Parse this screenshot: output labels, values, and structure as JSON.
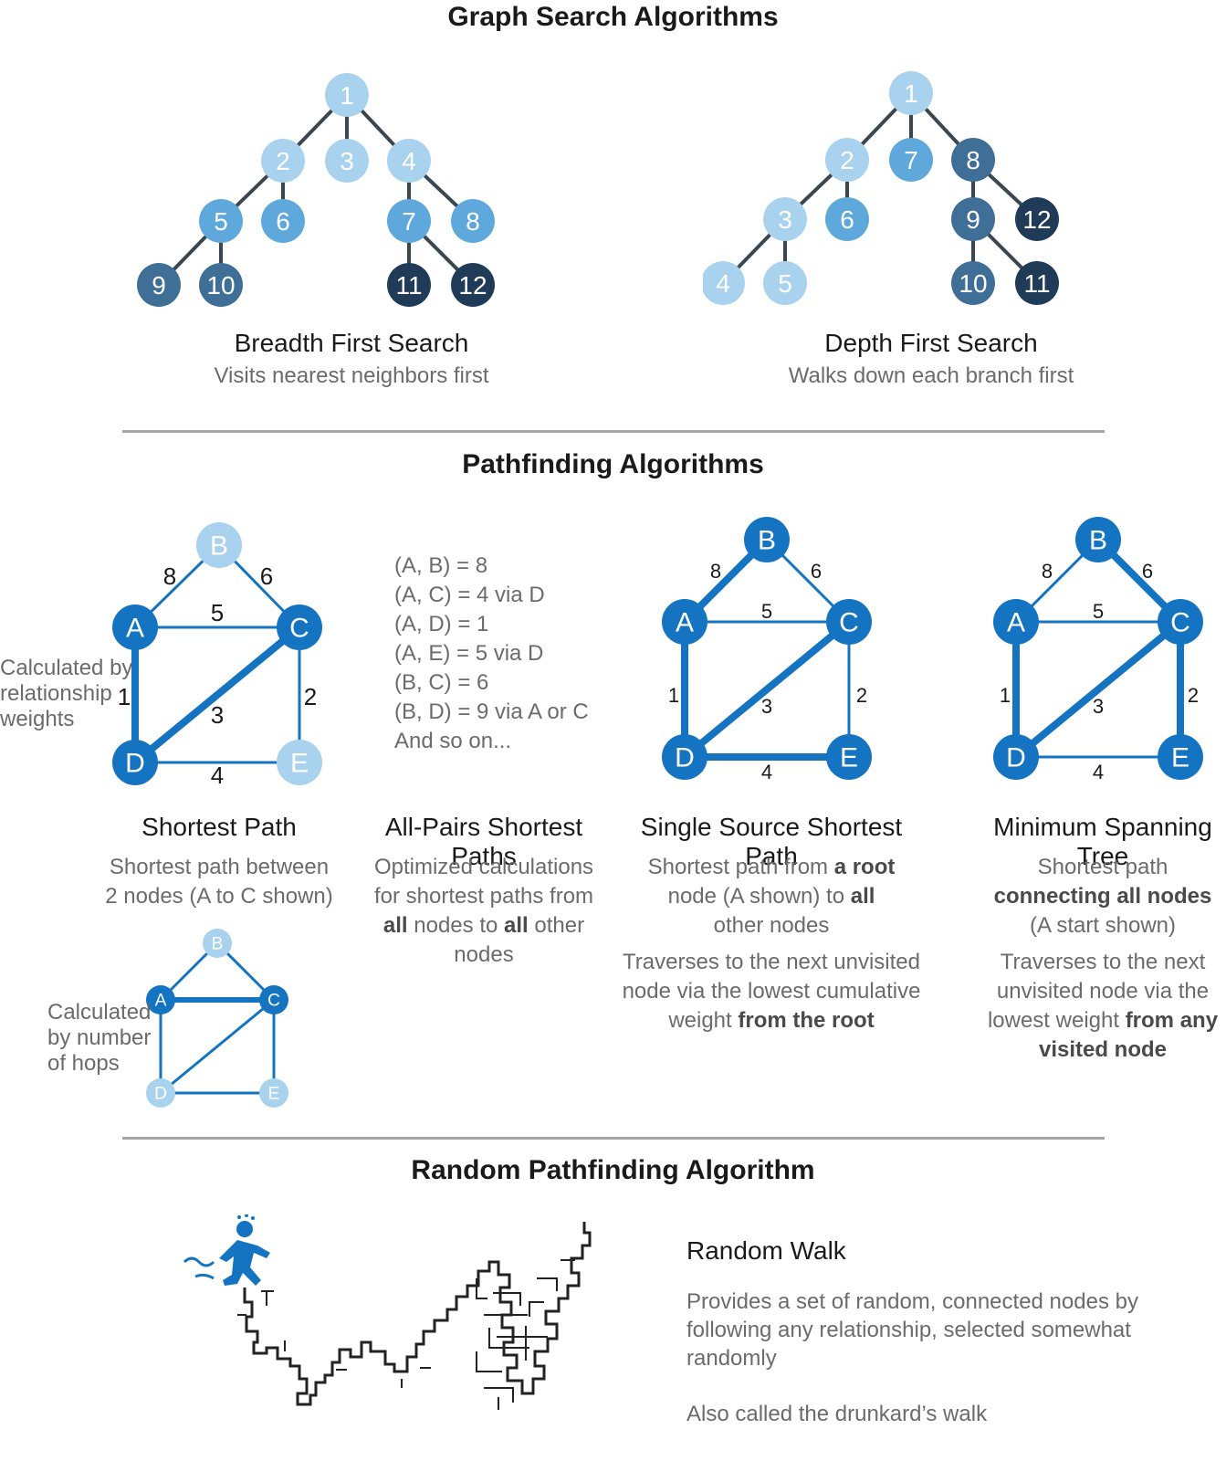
{
  "graph_search": {
    "title": "Graph Search Algorithms",
    "bfs": {
      "title": "Breadth First Search",
      "subtitle": "Visits nearest neighbors first",
      "nodes": [
        {
          "id": "1",
          "shade": "light"
        },
        {
          "id": "2",
          "shade": "light"
        },
        {
          "id": "3",
          "shade": "light"
        },
        {
          "id": "4",
          "shade": "light"
        },
        {
          "id": "5",
          "shade": "mid"
        },
        {
          "id": "6",
          "shade": "mid"
        },
        {
          "id": "7",
          "shade": "mid"
        },
        {
          "id": "8",
          "shade": "mid"
        },
        {
          "id": "9",
          "shade": "dark"
        },
        {
          "id": "10",
          "shade": "dark"
        },
        {
          "id": "11",
          "shade": "darkest"
        },
        {
          "id": "12",
          "shade": "darkest"
        }
      ],
      "edges": [
        [
          "1",
          "2"
        ],
        [
          "1",
          "3"
        ],
        [
          "1",
          "4"
        ],
        [
          "2",
          "5"
        ],
        [
          "2",
          "6"
        ],
        [
          "4",
          "7"
        ],
        [
          "4",
          "8"
        ],
        [
          "5",
          "9"
        ],
        [
          "5",
          "10"
        ],
        [
          "7",
          "11"
        ],
        [
          "7",
          "12"
        ]
      ]
    },
    "dfs": {
      "title": "Depth First Search",
      "subtitle": "Walks down each branch first",
      "nodes": [
        {
          "id": "1",
          "shade": "light"
        },
        {
          "id": "2",
          "shade": "light"
        },
        {
          "id": "3",
          "shade": "light"
        },
        {
          "id": "4",
          "shade": "light"
        },
        {
          "id": "5",
          "shade": "light"
        },
        {
          "id": "6",
          "shade": "mid"
        },
        {
          "id": "7",
          "shade": "mid"
        },
        {
          "id": "8",
          "shade": "dark"
        },
        {
          "id": "9",
          "shade": "dark"
        },
        {
          "id": "10",
          "shade": "dark"
        },
        {
          "id": "11",
          "shade": "darkest"
        },
        {
          "id": "12",
          "shade": "darkest"
        }
      ],
      "edges": [
        [
          "1",
          "2"
        ],
        [
          "1",
          "7"
        ],
        [
          "1",
          "8"
        ],
        [
          "2",
          "3"
        ],
        [
          "2",
          "6"
        ],
        [
          "3",
          "4"
        ],
        [
          "3",
          "5"
        ],
        [
          "8",
          "9"
        ],
        [
          "8",
          "12"
        ],
        [
          "9",
          "10"
        ],
        [
          "9",
          "11"
        ]
      ]
    }
  },
  "pathfinding": {
    "title": "Pathfinding Algorithms",
    "edge_weights": [
      {
        "from": "A",
        "to": "B",
        "w": "8"
      },
      {
        "from": "B",
        "to": "C",
        "w": "6"
      },
      {
        "from": "A",
        "to": "C",
        "w": "5"
      },
      {
        "from": "A",
        "to": "D",
        "w": "1"
      },
      {
        "from": "C",
        "to": "D",
        "w": "3"
      },
      {
        "from": "C",
        "to": "E",
        "w": "2"
      },
      {
        "from": "D",
        "to": "E",
        "w": "4"
      }
    ],
    "shortest_path": {
      "title": "Shortest Path",
      "subtitle_lines": [
        "Shortest path between",
        "2 nodes (A to C shown)"
      ],
      "note_weights": [
        "Calculated by",
        "relationship",
        "weights"
      ],
      "note_hops": [
        "Calculated",
        "by number",
        "of hops"
      ],
      "highlight_weighted": [
        [
          "A",
          "D"
        ],
        [
          "D",
          "C"
        ]
      ],
      "highlight_hops": [
        [
          "A",
          "C"
        ]
      ]
    },
    "all_pairs": {
      "title": "All-Pairs Shortest Paths",
      "pairs": [
        "(A, B) = 8",
        "(A, C) = 4 via D",
        "(A, D) = 1",
        "(A, E) = 5 via D",
        "(B, C) = 6",
        "(B, D) = 9 via A or C",
        "And so on..."
      ],
      "line1": "Optimized calculations",
      "line2": "for shortest paths from",
      "line3_bold1": "all",
      "line3_mid": " nodes to ",
      "line3_bold2": "all",
      "line3_end": " other nodes"
    },
    "sssp": {
      "title": "Single Source Shortest Path",
      "p1_a": "Shortest path from ",
      "p1_b": "a root",
      "p1_c": "node (A shown) to ",
      "p1_d": "all",
      "p1_e": "other nodes",
      "p2_l1": "Traverses to the next unvisited",
      "p2_l2": "node via the  lowest cumulative",
      "p2_l3a": "weight ",
      "p2_l3b": "from the root",
      "highlight": [
        [
          "A",
          "B"
        ],
        [
          "A",
          "D"
        ],
        [
          "D",
          "C"
        ],
        [
          "D",
          "E"
        ]
      ]
    },
    "mst": {
      "title": "Minimum Spanning Tree",
      "p1_l1": "Shortest path",
      "p1_l2": "connecting all nodes",
      "p1_l3": "(A start shown)",
      "p2_l1": "Traverses to the next",
      "p2_l2": "unvisited node via the",
      "p2_l3a": "lowest weight ",
      "p2_l3b": "from any",
      "p2_l4": "visited node",
      "highlight": [
        [
          "B",
          "C"
        ],
        [
          "A",
          "D"
        ],
        [
          "D",
          "C"
        ],
        [
          "C",
          "E"
        ]
      ]
    }
  },
  "random": {
    "title": "Random Pathfinding Algorithm",
    "walk_title": "Random Walk",
    "desc": "Provides a set of random, connected nodes by following any relationship, selected somewhat  randomly",
    "aka": "Also called the drunkard’s walk"
  },
  "colors": {
    "light": "#a9d2ee",
    "mid": "#5fa8dc",
    "dark": "#3f6f97",
    "darkest": "#1f3b57",
    "blue": "#1574c2",
    "edge_gray": "#3a4650"
  }
}
